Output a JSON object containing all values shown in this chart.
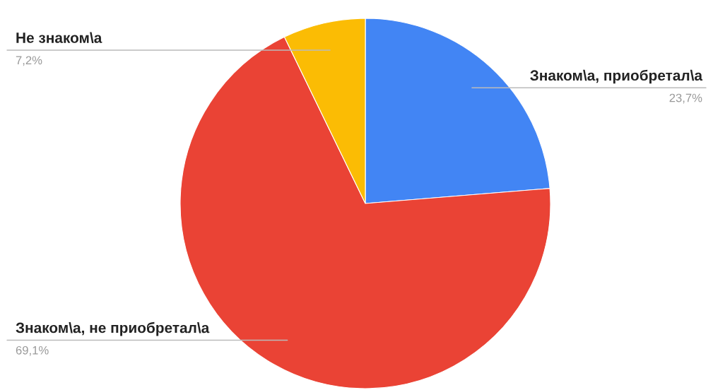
{
  "chart_data": {
    "type": "pie",
    "categories": [
      "Знаком\\a, приобретал\\a",
      "Знаком\\a, не приобретал\\a",
      "Не знаком\\a"
    ],
    "values": [
      23.7,
      69.1,
      7.2
    ],
    "colors": [
      "#4285f4",
      "#ea4335",
      "#fbbc04"
    ],
    "value_labels": [
      "23,7%",
      "69,1%",
      "7,2%"
    ],
    "legend": false
  }
}
